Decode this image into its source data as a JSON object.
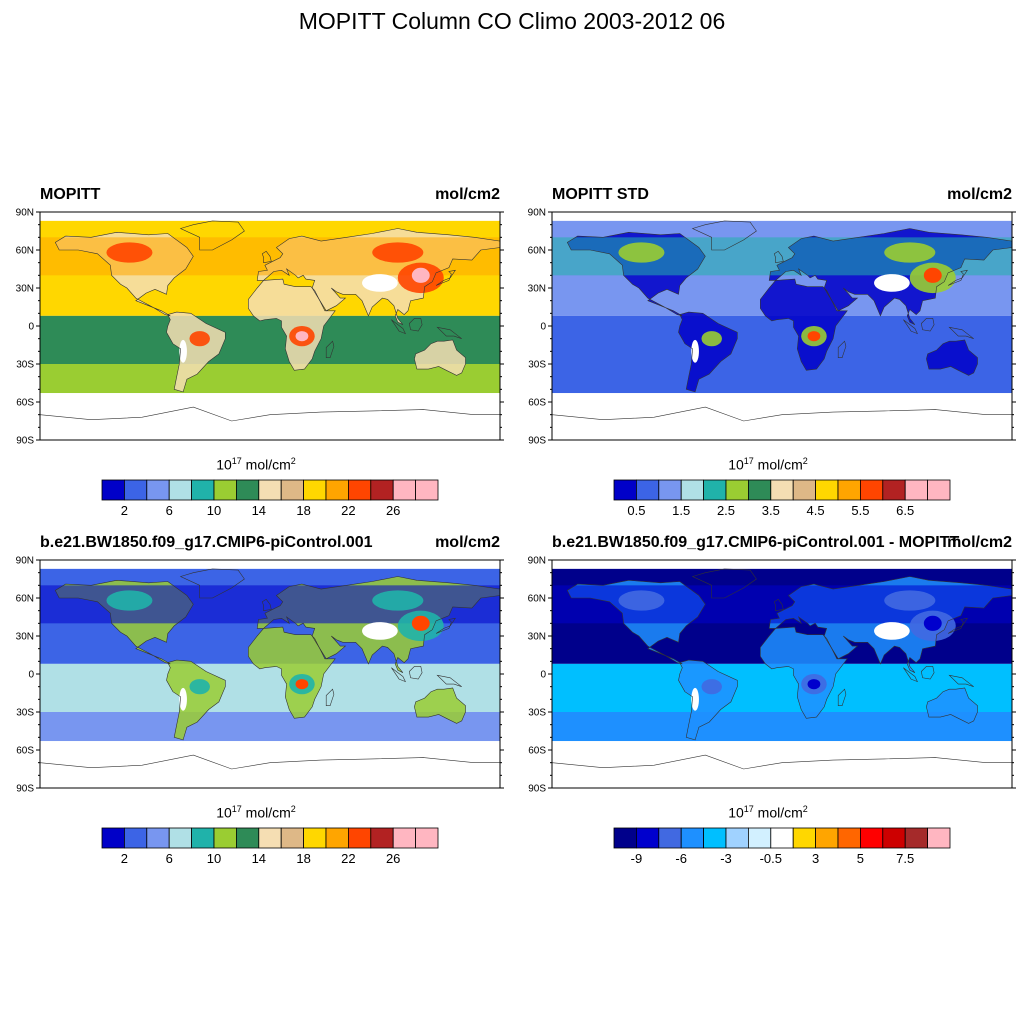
{
  "page": {
    "title": "MOPITT Column CO Climo 2003-2012 06"
  },
  "panels": [
    {
      "name": "MOPITT",
      "units": "mol/cm2",
      "scale_base": "10",
      "scale_exp": "17",
      "scale_unit": "mol/cm",
      "scale_unit_exp": "2",
      "lat_labels": [
        "90N",
        "60N",
        "30N",
        "0",
        "30S",
        "60S",
        "90S"
      ],
      "colors": [
        "#0000c8",
        "#3c64e6",
        "#7896f0",
        "#b0e0e6",
        "#20b2aa",
        "#9acd32",
        "#2e8b57",
        "#f5deb3",
        "#deb887",
        "#ffd700",
        "#ffa500",
        "#ff4500",
        "#b22222",
        "#ffb6c1",
        "#ffb6c1"
      ],
      "tick_labels": [
        "2",
        "6",
        "10",
        "14",
        "18",
        "22",
        "26"
      ],
      "fills": {
        "band_south": "#9acd32",
        "band_tropic": "#2e8b57",
        "north_base": "#ffd700",
        "north_hot": "#ffa500",
        "hot_spots": "#ff4500",
        "pink_spot": "#ffb6c1",
        "land_low": "#f5deb3",
        "land_mid": "#deb887"
      }
    },
    {
      "name": "MOPITT STD",
      "units": "mol/cm2",
      "scale_base": "10",
      "scale_exp": "17",
      "scale_unit": "mol/cm",
      "scale_unit_exp": "2",
      "lat_labels": [
        "90N",
        "60N",
        "30N",
        "0",
        "30S",
        "60S",
        "90S"
      ],
      "colors": [
        "#0000c8",
        "#3c64e6",
        "#7896f0",
        "#b0e0e6",
        "#20b2aa",
        "#9acd32",
        "#2e8b57",
        "#f5deb3",
        "#deb887",
        "#ffd700",
        "#ffa500",
        "#ff4500",
        "#b22222",
        "#ffb6c1",
        "#ffb6c1"
      ],
      "tick_labels": [
        "0.5",
        "1.5",
        "2.5",
        "3.5",
        "4.5",
        "5.5",
        "6.5"
      ],
      "fills": {
        "band_south": "#3c64e6",
        "band_tropic": "#3c64e6",
        "north_base": "#7896f0",
        "north_hot": "#20b2aa",
        "hot_spots": "#9acd32",
        "pink_spot": "#ff4500",
        "land_low": "#0000c8",
        "land_mid": "#7896f0"
      }
    },
    {
      "name": "b.e21.BW1850.f09_g17.CMIP6-piControl.001",
      "units": "mol/cm2",
      "scale_base": "10",
      "scale_exp": "17",
      "scale_unit": "mol/cm",
      "scale_unit_exp": "2",
      "lat_labels": [
        "90N",
        "60N",
        "30N",
        "0",
        "30S",
        "60S",
        "90S"
      ],
      "colors": [
        "#0000c8",
        "#3c64e6",
        "#7896f0",
        "#b0e0e6",
        "#20b2aa",
        "#9acd32",
        "#2e8b57",
        "#f5deb3",
        "#deb887",
        "#ffd700",
        "#ffa500",
        "#ff4500",
        "#b22222",
        "#ffb6c1",
        "#ffb6c1"
      ],
      "tick_labels": [
        "2",
        "6",
        "10",
        "14",
        "18",
        "22",
        "26"
      ],
      "fills": {
        "band_south": "#7896f0",
        "band_tropic": "#b0e0e6",
        "north_base": "#3c64e6",
        "north_hot": "#0000c8",
        "hot_spots": "#20b2aa",
        "pink_spot": "#ff4500",
        "land_low": "#9acd32",
        "land_mid": "#2e8b57"
      }
    },
    {
      "name": "b.e21.BW1850.f09_g17.CMIP6-piControl.001 - MOPITT",
      "units": "mol/cm2",
      "scale_base": "10",
      "scale_exp": "17",
      "scale_unit": "mol/cm",
      "scale_unit_exp": "2",
      "lat_labels": [
        "90N",
        "60N",
        "30N",
        "0",
        "30S",
        "60S",
        "90S"
      ],
      "colors": [
        "#00008b",
        "#0000cd",
        "#4169e1",
        "#1e90ff",
        "#00bfff",
        "#a0d2ff",
        "#d2f0ff",
        "#ffffff",
        "#ffd700",
        "#ffa500",
        "#ff6600",
        "#ff0000",
        "#cd0000",
        "#a52a2a",
        "#ffb6c1"
      ],
      "tick_labels": [
        "-9",
        "-6",
        "-3",
        "-0.5",
        "3",
        "5",
        "7.5"
      ],
      "fills": {
        "band_south": "#1e90ff",
        "band_tropic": "#00bfff",
        "north_base": "#00008b",
        "north_hot": "#0000cd",
        "hot_spots": "#4169e1",
        "pink_spot": "#0000cd",
        "land_low": "#1e90ff",
        "land_mid": "#4169e1"
      }
    }
  ]
}
